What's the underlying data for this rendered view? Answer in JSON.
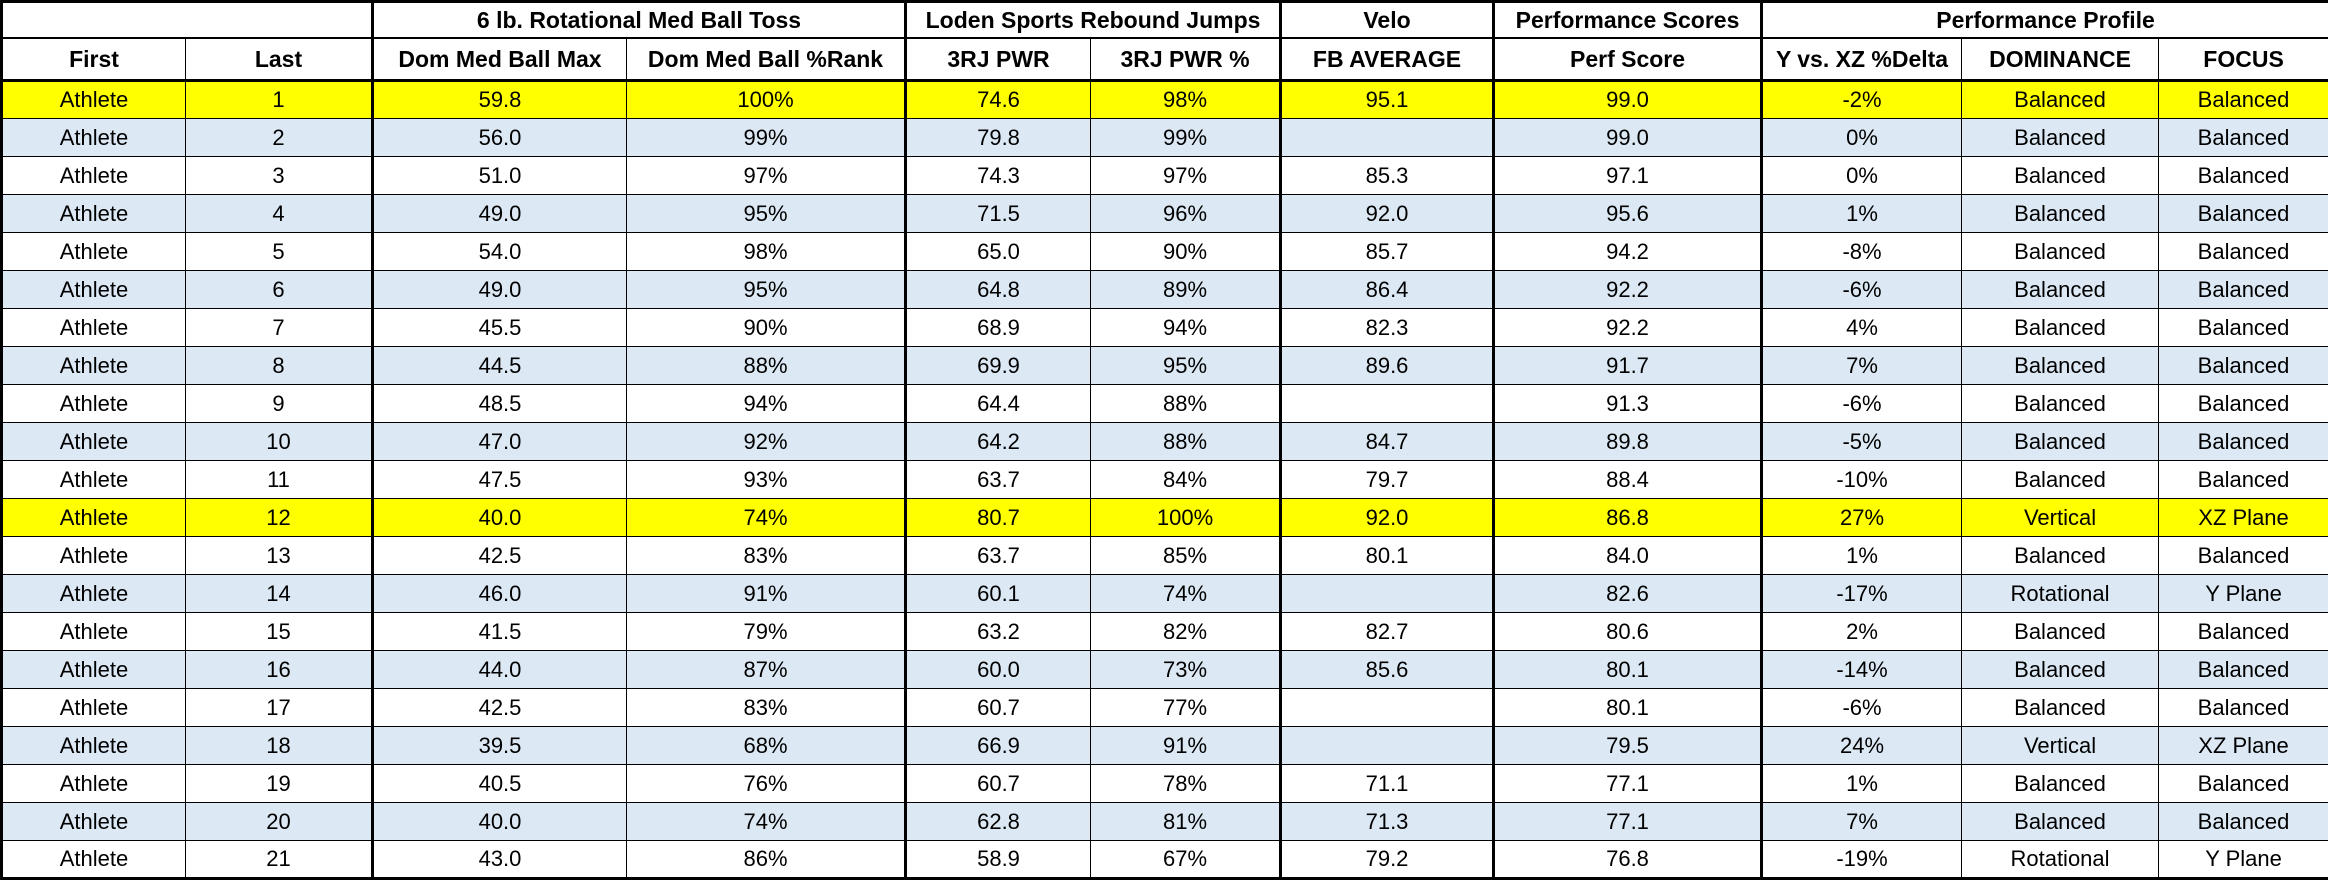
{
  "table": {
    "group_headers": [
      {
        "label": "",
        "span": 2
      },
      {
        "label": "6 lb. Rotational Med Ball Toss",
        "span": 2
      },
      {
        "label": "Loden Sports Rebound Jumps",
        "span": 2
      },
      {
        "label": "Velo",
        "span": 1
      },
      {
        "label": "Performance Scores",
        "span": 1
      },
      {
        "label": "Performance Profile",
        "span": 3
      }
    ],
    "columns": [
      "First",
      "Last",
      "Dom Med Ball Max",
      "Dom Med Ball %Rank",
      "3RJ PWR",
      "3RJ PWR %",
      "FB AVERAGE",
      "Perf Score",
      "Y vs. XZ %Delta",
      "DOMINANCE",
      "FOCUS"
    ],
    "rows": [
      {
        "highlight": "yellow",
        "cells": [
          "Athlete",
          "1",
          "59.8",
          "100%",
          "74.6",
          "98%",
          "95.1",
          "99.0",
          "-2%",
          "Balanced",
          "Balanced"
        ]
      },
      {
        "highlight": "blue",
        "cells": [
          "Athlete",
          "2",
          "56.0",
          "99%",
          "79.8",
          "99%",
          "",
          "99.0",
          "0%",
          "Balanced",
          "Balanced"
        ]
      },
      {
        "highlight": "white",
        "cells": [
          "Athlete",
          "3",
          "51.0",
          "97%",
          "74.3",
          "97%",
          "85.3",
          "97.1",
          "0%",
          "Balanced",
          "Balanced"
        ]
      },
      {
        "highlight": "blue",
        "cells": [
          "Athlete",
          "4",
          "49.0",
          "95%",
          "71.5",
          "96%",
          "92.0",
          "95.6",
          "1%",
          "Balanced",
          "Balanced"
        ]
      },
      {
        "highlight": "white",
        "cells": [
          "Athlete",
          "5",
          "54.0",
          "98%",
          "65.0",
          "90%",
          "85.7",
          "94.2",
          "-8%",
          "Balanced",
          "Balanced"
        ]
      },
      {
        "highlight": "blue",
        "cells": [
          "Athlete",
          "6",
          "49.0",
          "95%",
          "64.8",
          "89%",
          "86.4",
          "92.2",
          "-6%",
          "Balanced",
          "Balanced"
        ]
      },
      {
        "highlight": "white",
        "cells": [
          "Athlete",
          "7",
          "45.5",
          "90%",
          "68.9",
          "94%",
          "82.3",
          "92.2",
          "4%",
          "Balanced",
          "Balanced"
        ]
      },
      {
        "highlight": "blue",
        "cells": [
          "Athlete",
          "8",
          "44.5",
          "88%",
          "69.9",
          "95%",
          "89.6",
          "91.7",
          "7%",
          "Balanced",
          "Balanced"
        ]
      },
      {
        "highlight": "white",
        "cells": [
          "Athlete",
          "9",
          "48.5",
          "94%",
          "64.4",
          "88%",
          "",
          "91.3",
          "-6%",
          "Balanced",
          "Balanced"
        ]
      },
      {
        "highlight": "blue",
        "cells": [
          "Athlete",
          "10",
          "47.0",
          "92%",
          "64.2",
          "88%",
          "84.7",
          "89.8",
          "-5%",
          "Balanced",
          "Balanced"
        ]
      },
      {
        "highlight": "white",
        "cells": [
          "Athlete",
          "11",
          "47.5",
          "93%",
          "63.7",
          "84%",
          "79.7",
          "88.4",
          "-10%",
          "Balanced",
          "Balanced"
        ]
      },
      {
        "highlight": "yellow",
        "cells": [
          "Athlete",
          "12",
          "40.0",
          "74%",
          "80.7",
          "100%",
          "92.0",
          "86.8",
          "27%",
          "Vertical",
          "XZ Plane"
        ]
      },
      {
        "highlight": "white",
        "cells": [
          "Athlete",
          "13",
          "42.5",
          "83%",
          "63.7",
          "85%",
          "80.1",
          "84.0",
          "1%",
          "Balanced",
          "Balanced"
        ]
      },
      {
        "highlight": "blue",
        "cells": [
          "Athlete",
          "14",
          "46.0",
          "91%",
          "60.1",
          "74%",
          "",
          "82.6",
          "-17%",
          "Rotational",
          "Y Plane"
        ]
      },
      {
        "highlight": "white",
        "cells": [
          "Athlete",
          "15",
          "41.5",
          "79%",
          "63.2",
          "82%",
          "82.7",
          "80.6",
          "2%",
          "Balanced",
          "Balanced"
        ]
      },
      {
        "highlight": "blue",
        "cells": [
          "Athlete",
          "16",
          "44.0",
          "87%",
          "60.0",
          "73%",
          "85.6",
          "80.1",
          "-14%",
          "Balanced",
          "Balanced"
        ]
      },
      {
        "highlight": "white",
        "cells": [
          "Athlete",
          "17",
          "42.5",
          "83%",
          "60.7",
          "77%",
          "",
          "80.1",
          "-6%",
          "Balanced",
          "Balanced"
        ]
      },
      {
        "highlight": "blue",
        "cells": [
          "Athlete",
          "18",
          "39.5",
          "68%",
          "66.9",
          "91%",
          "",
          "79.5",
          "24%",
          "Vertical",
          "XZ Plane"
        ]
      },
      {
        "highlight": "white",
        "cells": [
          "Athlete",
          "19",
          "40.5",
          "76%",
          "60.7",
          "78%",
          "71.1",
          "77.1",
          "1%",
          "Balanced",
          "Balanced"
        ]
      },
      {
        "highlight": "blue",
        "cells": [
          "Athlete",
          "20",
          "40.0",
          "74%",
          "62.8",
          "81%",
          "71.3",
          "77.1",
          "7%",
          "Balanced",
          "Balanced"
        ]
      },
      {
        "highlight": "white",
        "cells": [
          "Athlete",
          "21",
          "43.0",
          "86%",
          "58.9",
          "67%",
          "79.2",
          "76.8",
          "-19%",
          "Rotational",
          "Y Plane"
        ]
      }
    ],
    "colors": {
      "highlight_yellow": "#ffff00",
      "band_blue": "#dce9f5",
      "band_white": "#ffffff",
      "border_black": "#000000",
      "text": "#000000"
    }
  }
}
